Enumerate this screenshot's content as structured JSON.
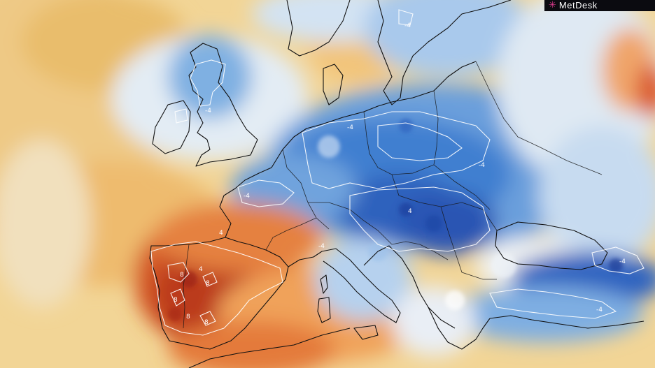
{
  "brand": {
    "name": "MetDesk",
    "mark": "✳"
  },
  "contour_labels": {
    "uk": "-4",
    "scandinavia": "-4",
    "france": "-4",
    "germany": "-4",
    "alps": "-4",
    "hungary": "4",
    "poland": "-4",
    "turkey": "-4",
    "black_sea": "-4",
    "iberia_a": "8",
    "iberia_b": "8",
    "iberia_c": "8",
    "iberia_d": "8",
    "iberia_e": "4",
    "iberia_f": "4",
    "iberia_g": "8"
  },
  "colors": {
    "warm_deep": "#b8321c",
    "warm_mid": "#de6a2c",
    "warm_light": "#f0a55a",
    "neutral_warm": "#f3d9a0",
    "neutral_cool": "#dfe9f3",
    "cool_light": "#8fb8e3",
    "cool_mid": "#3f7fd0",
    "cool_deep": "#1a3fa8",
    "contour": "#ffffff",
    "coastline": "#111111"
  }
}
